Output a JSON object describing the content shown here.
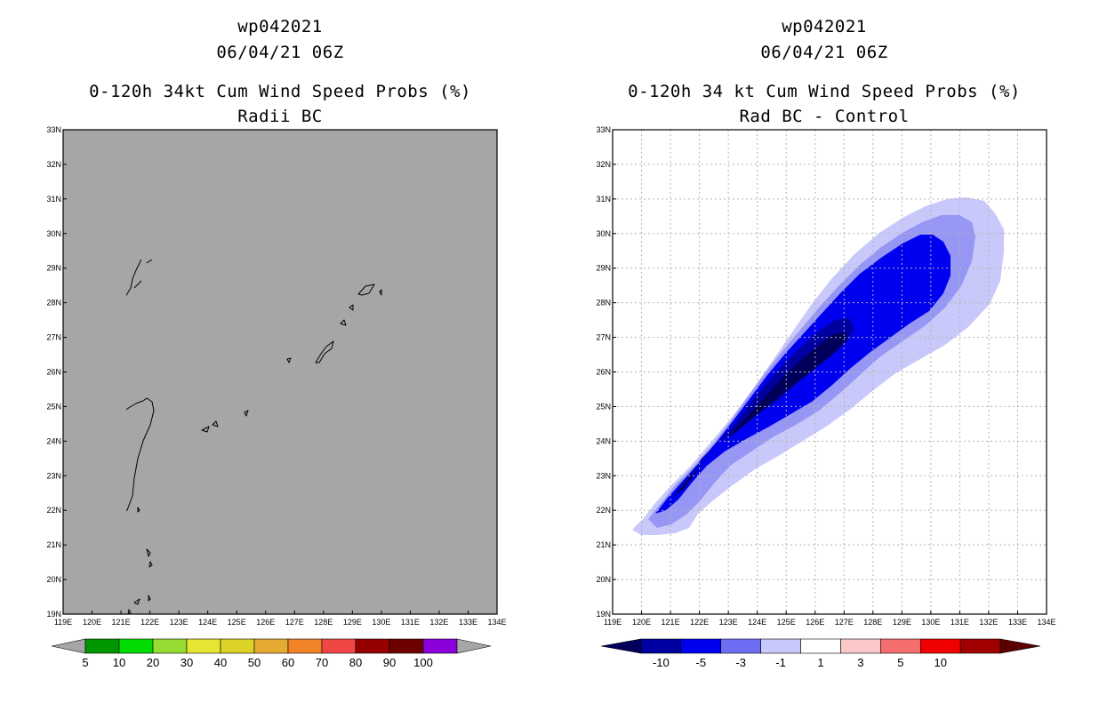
{
  "left_panel": {
    "title_line1": "wp042021",
    "title_line2": "06/04/21 06Z",
    "title_line3": "0-120h 34kt Cum Wind Speed Probs (%)",
    "title_line4": "Radii BC",
    "background_color": "#a6a6a6",
    "colorbar": {
      "colors": [
        "#a6a6a6",
        "#009600",
        "#00dc00",
        "#96dc32",
        "#e6e632",
        "#dcd228",
        "#e6aa32",
        "#f08228",
        "#f04646",
        "#960000",
        "#6e0000",
        "#8c00dc",
        "#a6a6a6"
      ],
      "labels": [
        "5",
        "10",
        "20",
        "30",
        "40",
        "50",
        "60",
        "70",
        "80",
        "90",
        "100"
      ]
    }
  },
  "right_panel": {
    "title_line1": "wp042021",
    "title_line2": "06/04/21 06Z",
    "title_line3": "0-120h 34 kt Cum Wind Speed Probs (%)",
    "title_line4": "Rad BC - Control",
    "colorbar": {
      "colors": [
        "#00005a",
        "#0000a0",
        "#0000f0",
        "#6e6ef5",
        "#c8c8fa",
        "#ffffff",
        "#fac8c8",
        "#f56e6e",
        "#f00000",
        "#a00000",
        "#5a0000"
      ],
      "labels": [
        "-10",
        "-5",
        "-3",
        "-1",
        "1",
        "3",
        "5",
        "10"
      ]
    },
    "contour_levels": [
      {
        "level": "-1",
        "color": "#c8c8fa"
      },
      {
        "level": "-3",
        "color": "#9696f5"
      },
      {
        "level": "-5",
        "color": "#0000f0"
      },
      {
        "level": "-10",
        "color": "#0000a0"
      },
      {
        "level": "-15",
        "color": "#00005a"
      }
    ]
  },
  "map": {
    "lon_range": [
      119,
      134
    ],
    "lat_range": [
      19,
      33
    ],
    "lon_labels": [
      "119E",
      "120E",
      "121E",
      "122E",
      "123E",
      "124E",
      "125E",
      "126E",
      "127E",
      "128E",
      "129E",
      "130E",
      "131E",
      "132E",
      "133E",
      "134E"
    ],
    "lat_labels": [
      "19N",
      "20N",
      "21N",
      "22N",
      "23N",
      "24N",
      "25N",
      "26N",
      "27N",
      "28N",
      "29N",
      "30N",
      "31N",
      "32N",
      "33N"
    ]
  }
}
